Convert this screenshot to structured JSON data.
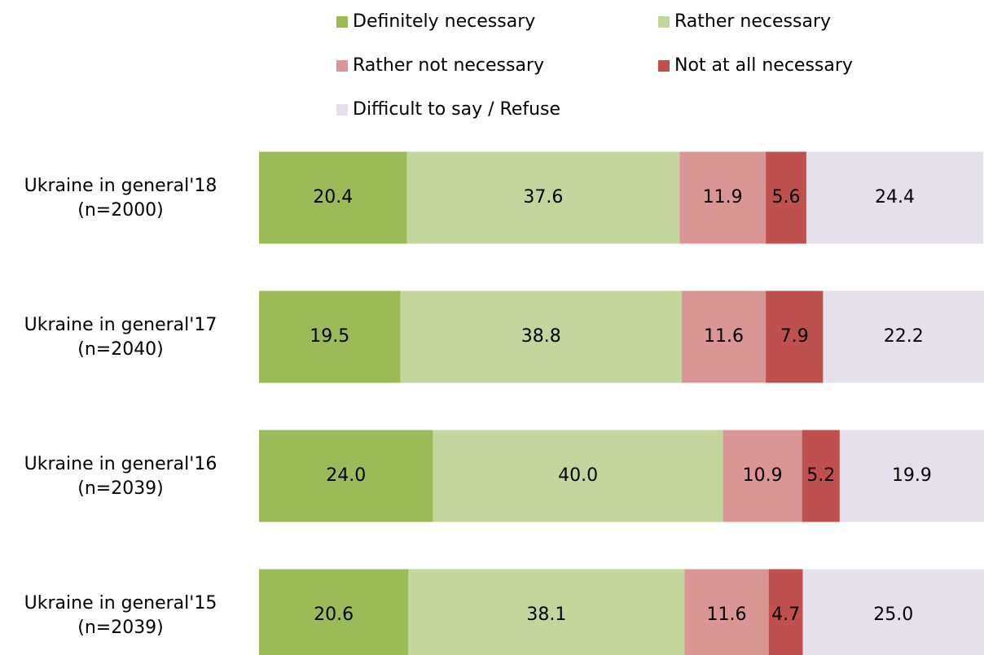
{
  "chart_data": {
    "type": "stacked_barh",
    "categories": [
      "Ukraine in general'18\n(n=2000)",
      "Ukraine in general'17\n(n=2040)",
      "Ukraine in general'16\n(n=2039)",
      "Ukraine in general'15\n(n=2039)"
    ],
    "xlim": [
      0,
      100
    ],
    "series": [
      {
        "name": "Definitely necessary",
        "color": "#9bbb59",
        "values": [
          20.4,
          19.5,
          24,
          20.6
        ],
        "value_labels": [
          "20.4",
          "19.5",
          "24.0",
          "20.6"
        ]
      },
      {
        "name": "Rather necessary",
        "color": "#c3d69b",
        "values": [
          37.6,
          38.8,
          40,
          38.1
        ],
        "value_labels": [
          "37.6",
          "38.8",
          "40.0",
          "38.1"
        ]
      },
      {
        "name": "Rather not necessary",
        "color": "#d99694",
        "values": [
          11.9,
          11.6,
          10.9,
          11.6
        ],
        "value_labels": [
          "11.9",
          "11.6",
          "10.9",
          "11.6"
        ]
      },
      {
        "name": "Not at all necessary",
        "color": "#c0504d",
        "values": [
          5.6,
          7.9,
          5.2,
          4.7
        ],
        "value_labels": [
          "5.6",
          "7.9",
          "5.2",
          "4.7"
        ]
      },
      {
        "name": "Difficult to say / Refuse",
        "color": "#e6e0ec",
        "values": [
          24.4,
          22.2,
          19.9,
          25
        ],
        "value_labels": [
          "24.4",
          "22.2",
          "19.9",
          "25.0"
        ]
      }
    ],
    "legend": "top"
  }
}
